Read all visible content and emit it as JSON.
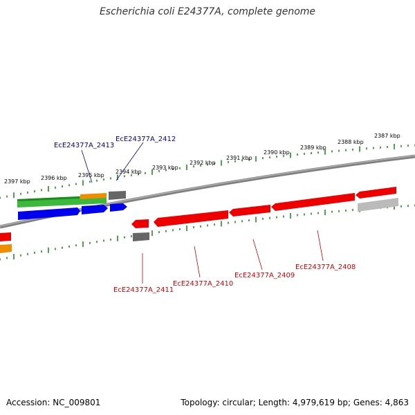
{
  "title": "Escherichia coli E24377A, complete genome",
  "footer": {
    "accession": "Accession: NC_009801",
    "summary": "Topology: circular; Length: 4,979,619 bp; Genes: 4,863"
  },
  "colors": {
    "backbone": "#808080",
    "ticks": "#228B22",
    "forward_label": "#00008B",
    "reverse_label": "#CC0000",
    "red": "#EE0000",
    "blue": "#0000EE",
    "green": "#3CB83C",
    "orange": "#F08C00",
    "gray": "#666666",
    "lightgray": "#BBBBBB"
  },
  "kbp_labels": [
    "2397 kbp",
    "2396 kbp",
    "2395 kbp",
    "2394 kbp",
    "2393 kbp",
    "2392 kbp",
    "2391 kbp",
    "2390 kbp",
    "2389 kbp",
    "2388 kbp",
    "2387 kbp"
  ],
  "gene_labels": [
    {
      "text": "EcE24377A_2413",
      "strand": "forward"
    },
    {
      "text": "EcE24377A_2412",
      "strand": "forward"
    },
    {
      "text": "EcE24377A_2411",
      "strand": "reverse"
    },
    {
      "text": "EcE24377A_2410",
      "strand": "reverse"
    },
    {
      "text": "EcE24377A_2409",
      "strand": "reverse"
    },
    {
      "text": "EcE24377A_2408",
      "strand": "reverse"
    }
  ]
}
